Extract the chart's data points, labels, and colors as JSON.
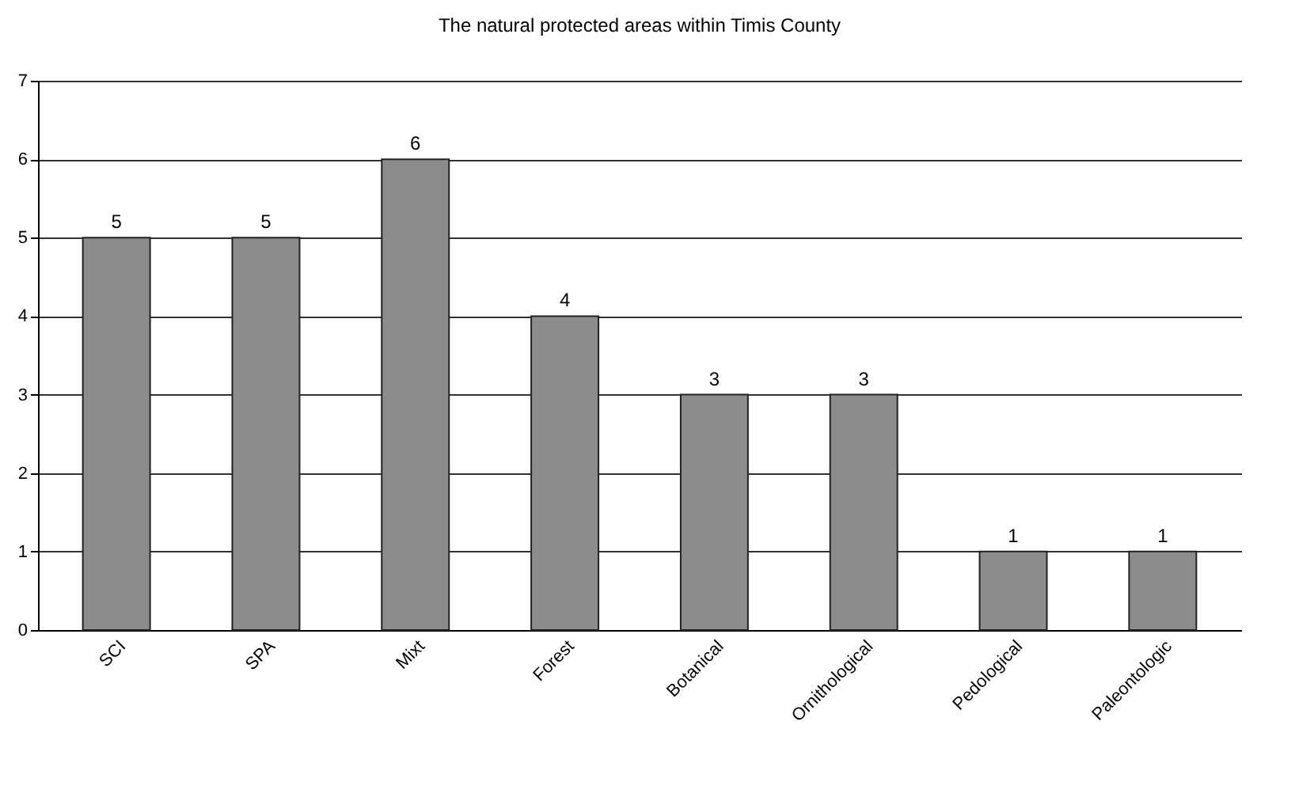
{
  "chart_data": {
    "type": "bar",
    "title": "The natural protected areas within Timis County",
    "categories": [
      "SCI",
      "SPA",
      "Mixt",
      "Forest",
      "Botanical",
      "Ornithological",
      "Pedological",
      "Paleontologic"
    ],
    "values": [
      5,
      5,
      6,
      4,
      3,
      3,
      1,
      1
    ],
    "color": "#8c8c8c",
    "ylim": [
      0,
      7
    ],
    "yticks": [
      0,
      1,
      2,
      3,
      4,
      5,
      6,
      7
    ],
    "grid": "y",
    "data_labels": true
  }
}
